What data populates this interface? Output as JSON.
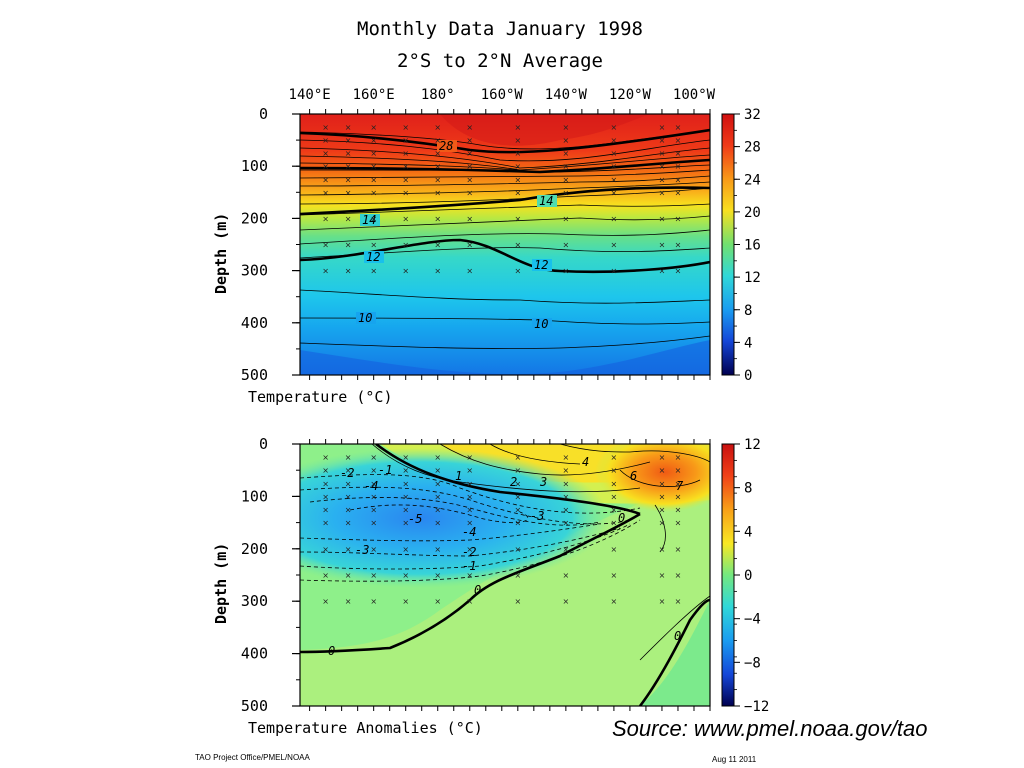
{
  "title": "Monthly Data January 1998",
  "subtitle": "2°S to 2°N Average",
  "source_text": "Source:  www.pmel.noaa.gov/tao",
  "footer_left": "TAO Project Office/PMEL/NOAA",
  "footer_right": "Aug 11 2011",
  "chart_data": [
    {
      "type": "heatmap",
      "title": "",
      "xlabel": "Temperature  (°C)",
      "ylabel": "Depth (m)",
      "x_tick_labels": [
        "140°E",
        "160°E",
        "180°",
        "160°W",
        "140°W",
        "120°W",
        "100°W"
      ],
      "x_range_deg_east": [
        137,
        265
      ],
      "y_ticks": [
        0,
        100,
        200,
        300,
        400,
        500
      ],
      "ylim": [
        500,
        0
      ],
      "colorbar_ticks": [
        32,
        28,
        24,
        20,
        16,
        12,
        8,
        4,
        0
      ],
      "colorbar_range": [
        0,
        32
      ],
      "contour_labels": [
        "28",
        "14",
        "14",
        "12",
        "12",
        "10",
        "10"
      ],
      "contours": [
        {
          "value": 28,
          "x": [
            140,
            160,
            180,
            200,
            220,
            240,
            262
          ],
          "depth": [
            40,
            45,
            55,
            70,
            55,
            40,
            25
          ]
        },
        {
          "value": 24,
          "x": [
            140,
            160,
            180,
            200,
            220,
            240,
            262
          ],
          "depth": [
            105,
            100,
            95,
            90,
            80,
            70,
            60
          ]
        },
        {
          "value": 20,
          "x": [
            140,
            160,
            180,
            200,
            220,
            240,
            262
          ],
          "depth": [
            140,
            135,
            128,
            118,
            105,
            95,
            85
          ]
        },
        {
          "value": 16,
          "x": [
            140,
            160,
            180,
            200,
            220,
            240,
            262
          ],
          "depth": [
            178,
            172,
            165,
            150,
            135,
            122,
            135
          ]
        },
        {
          "value": 14,
          "x": [
            140,
            160,
            180,
            200,
            220,
            240,
            262
          ],
          "depth": [
            200,
            198,
            190,
            180,
            170,
            200,
            210
          ]
        },
        {
          "value": 12,
          "x": [
            140,
            160,
            180,
            200,
            220,
            240,
            262
          ],
          "depth": [
            275,
            270,
            258,
            248,
            285,
            300,
            280
          ]
        },
        {
          "value": 10,
          "x": [
            140,
            160,
            180,
            200,
            220,
            240,
            262
          ],
          "depth": [
            380,
            385,
            390,
            395,
            395,
            385,
            375
          ]
        },
        {
          "value": 8,
          "x": [
            140,
            160,
            180,
            200,
            220,
            240,
            262
          ],
          "depth": [
            470,
            480,
            500,
            500,
            490,
            470,
            450
          ]
        }
      ]
    },
    {
      "type": "heatmap",
      "title": "",
      "xlabel": "Temperature Anomalies (°C)",
      "ylabel": "Depth (m)",
      "x_tick_labels": [],
      "x_range_deg_east": [
        137,
        265
      ],
      "y_ticks": [
        0,
        100,
        200,
        300,
        400,
        500
      ],
      "ylim": [
        500,
        0
      ],
      "colorbar_ticks": [
        12,
        8,
        4,
        0,
        -4,
        -8,
        -12
      ],
      "colorbar_range": [
        -12,
        12
      ],
      "contour_labels": [
        "-1",
        "-2",
        "-4",
        "-5",
        "-4",
        "-3",
        "-3",
        "-2",
        "-1",
        "1",
        "2",
        "3",
        "4",
        "6",
        "7",
        "0",
        "0",
        "0",
        "0"
      ],
      "contours": [
        {
          "value": 0,
          "x": [
            140,
            160,
            180,
            200,
            220,
            235,
            245
          ],
          "depth": [
            400,
            395,
            360,
            290,
            230,
            170,
            60
          ]
        },
        {
          "value": -1,
          "x": [
            140,
            160,
            180,
            200,
            220,
            235
          ],
          "depth": [
            70,
            65,
            60,
            100,
            160,
            100
          ]
        },
        {
          "value": -4,
          "x": [
            140,
            160,
            180,
            200,
            215
          ],
          "depth": [
            90,
            95,
            110,
            140,
            150
          ]
        },
        {
          "value": 4,
          "x": [
            230,
            240,
            250,
            262
          ],
          "depth": [
            20,
            40,
            60,
            70
          ]
        }
      ]
    }
  ]
}
